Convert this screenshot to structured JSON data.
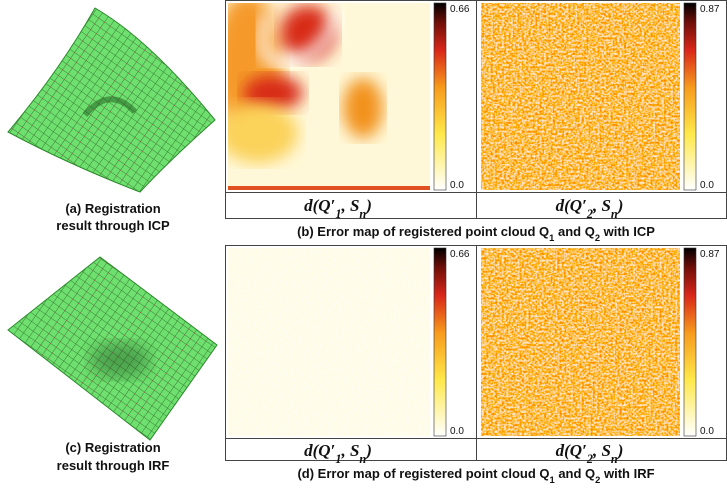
{
  "figure": {
    "left_captions": [
      [
        "(a) Registration",
        "result through ICP"
      ],
      [
        "(c) Registration",
        "result through IRF"
      ]
    ],
    "rows": [
      {
        "caption": [
          "(b) Error map of registered point cloud Q",
          "1",
          " and Q",
          "2",
          " with ICP"
        ],
        "maps": [
          {
            "label": [
              "d(Q′",
              "1",
              ", S",
              "n",
              ")"
            ],
            "cbar_max": "0.66",
            "cbar_min": "0.0"
          },
          {
            "label": [
              "d(Q′",
              "2",
              ", S",
              "n",
              ")"
            ],
            "cbar_max": "0.87",
            "cbar_min": "0.0"
          }
        ]
      },
      {
        "caption": [
          "(d) Error map of registered point cloud Q",
          "1",
          " and Q",
          "2",
          " with IRF"
        ],
        "maps": [
          {
            "label": [
              "d(Q′",
              "1",
              ", S",
              "n",
              ")"
            ],
            "cbar_max": "0.66",
            "cbar_min": "0.0"
          },
          {
            "label": [
              "d(Q′",
              "2",
              ", S",
              "n",
              ")"
            ],
            "cbar_max": "0.87",
            "cbar_min": "0.0"
          }
        ]
      }
    ]
  }
}
